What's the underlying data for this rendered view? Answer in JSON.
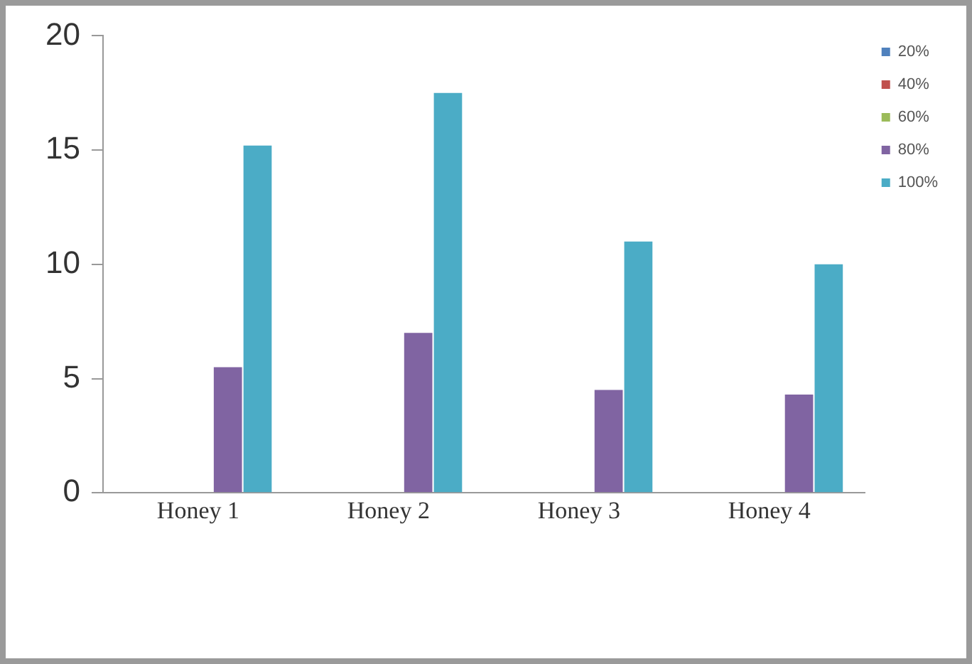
{
  "chart_data": {
    "type": "bar",
    "categories": [
      "Honey 1",
      "Honey 2",
      "Honey 3",
      "Honey 4"
    ],
    "series": [
      {
        "name": "20%",
        "color": "#4f81bd",
        "values": [
          0,
          0,
          0,
          0
        ]
      },
      {
        "name": "40%",
        "color": "#c0504d",
        "values": [
          0,
          0,
          0,
          0
        ]
      },
      {
        "name": "60%",
        "color": "#9bbb59",
        "values": [
          0,
          0,
          0,
          0
        ]
      },
      {
        "name": "80%",
        "color": "#8064a2",
        "values": [
          5.5,
          7.0,
          4.5,
          4.3
        ]
      },
      {
        "name": "100%",
        "color": "#4bacc6",
        "values": [
          15.2,
          17.5,
          11.0,
          10.0
        ]
      }
    ],
    "ylim": [
      0,
      20
    ],
    "yticks": [
      0,
      5,
      10,
      15,
      20
    ],
    "grid": false,
    "legend": "top right"
  }
}
